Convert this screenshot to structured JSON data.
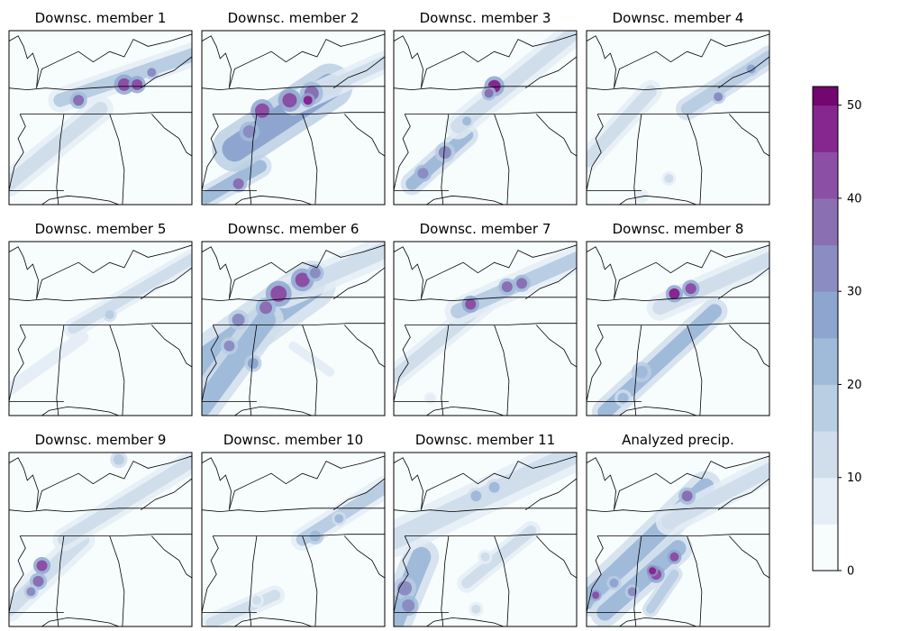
{
  "chart_data": {
    "type": "heatmap",
    "panels": [
      {
        "title": "Downsc. member 1",
        "bands": [
          {
            "x1": 0.0,
            "y1": 0.88,
            "x2": 0.5,
            "y2": 0.45,
            "w": 16,
            "v": 10
          },
          {
            "x1": 0.28,
            "y1": 0.4,
            "x2": 1.0,
            "y2": 0.14,
            "w": 15,
            "v": 15
          }
        ],
        "blobs": [
          {
            "x": 0.63,
            "y": 0.31,
            "r": 7,
            "v": 42
          },
          {
            "x": 0.7,
            "y": 0.31,
            "r": 6,
            "v": 40
          },
          {
            "x": 0.38,
            "y": 0.4,
            "r": 6,
            "v": 38
          },
          {
            "x": 0.78,
            "y": 0.24,
            "r": 5,
            "v": 30
          }
        ]
      },
      {
        "title": "Downsc. member 2",
        "bands": [
          {
            "x1": 0.02,
            "y1": 0.96,
            "x2": 0.32,
            "y2": 0.78,
            "w": 14,
            "v": 22
          },
          {
            "x1": 0.18,
            "y1": 0.68,
            "x2": 0.7,
            "y2": 0.32,
            "w": 28,
            "v": 26
          },
          {
            "x1": 0.5,
            "y1": 0.42,
            "x2": 1.0,
            "y2": 0.18,
            "w": 14,
            "v": 12
          }
        ],
        "blobs": [
          {
            "x": 0.33,
            "y": 0.46,
            "r": 8,
            "v": 42
          },
          {
            "x": 0.48,
            "y": 0.4,
            "r": 8,
            "v": 40
          },
          {
            "x": 0.6,
            "y": 0.36,
            "r": 8,
            "v": 38
          },
          {
            "x": 0.26,
            "y": 0.58,
            "r": 7,
            "v": 32
          },
          {
            "x": 0.2,
            "y": 0.88,
            "r": 6,
            "v": 36
          },
          {
            "x": 0.58,
            "y": 0.4,
            "r": 5,
            "v": 46
          }
        ]
      },
      {
        "title": "Downsc. member 3",
        "bands": [
          {
            "x1": 0.1,
            "y1": 0.88,
            "x2": 0.4,
            "y2": 0.6,
            "w": 14,
            "v": 22
          },
          {
            "x1": 0.35,
            "y1": 0.55,
            "x2": 1.0,
            "y2": 0.0,
            "w": 16,
            "v": 14
          }
        ],
        "blobs": [
          {
            "x": 0.55,
            "y": 0.32,
            "r": 7,
            "v": 46
          },
          {
            "x": 0.52,
            "y": 0.36,
            "r": 5,
            "v": 38
          },
          {
            "x": 0.28,
            "y": 0.7,
            "r": 7,
            "v": 30
          },
          {
            "x": 0.16,
            "y": 0.82,
            "r": 6,
            "v": 32
          },
          {
            "x": 0.4,
            "y": 0.52,
            "r": 5,
            "v": 22
          }
        ]
      },
      {
        "title": "Downsc. member 4",
        "bands": [
          {
            "x1": 0.0,
            "y1": 0.75,
            "x2": 0.35,
            "y2": 0.35,
            "w": 14,
            "v": 10
          },
          {
            "x1": 0.55,
            "y1": 0.45,
            "x2": 1.0,
            "y2": 0.15,
            "w": 14,
            "v": 18
          }
        ],
        "blobs": [
          {
            "x": 0.72,
            "y": 0.38,
            "r": 5,
            "v": 30
          },
          {
            "x": 0.9,
            "y": 0.22,
            "r": 5,
            "v": 25
          },
          {
            "x": 0.45,
            "y": 0.85,
            "r": 5,
            "v": 10
          },
          {
            "x": 0.3,
            "y": 0.95,
            "r": 5,
            "v": 8
          }
        ]
      },
      {
        "title": "Downsc. member 5",
        "bands": [
          {
            "x1": 0.0,
            "y1": 0.85,
            "x2": 0.4,
            "y2": 0.55,
            "w": 14,
            "v": 6
          },
          {
            "x1": 0.35,
            "y1": 0.5,
            "x2": 1.0,
            "y2": 0.1,
            "w": 12,
            "v": 10
          }
        ],
        "blobs": [
          {
            "x": 0.55,
            "y": 0.42,
            "r": 5,
            "v": 16
          }
        ]
      },
      {
        "title": "Downsc. member 6",
        "bands": [
          {
            "x1": 0.0,
            "y1": 0.7,
            "x2": 0.6,
            "y2": 0.25,
            "w": 30,
            "v": 24
          },
          {
            "x1": 0.0,
            "y1": 0.95,
            "x2": 0.35,
            "y2": 0.45,
            "w": 22,
            "v": 22
          },
          {
            "x1": 0.45,
            "y1": 0.3,
            "x2": 1.0,
            "y2": 0.05,
            "w": 18,
            "v": 14
          },
          {
            "x1": 0.5,
            "y1": 0.6,
            "x2": 0.7,
            "y2": 0.75,
            "w": 10,
            "v": 8
          }
        ],
        "blobs": [
          {
            "x": 0.42,
            "y": 0.3,
            "r": 9,
            "v": 42
          },
          {
            "x": 0.55,
            "y": 0.22,
            "r": 8,
            "v": 40
          },
          {
            "x": 0.35,
            "y": 0.38,
            "r": 7,
            "v": 38
          },
          {
            "x": 0.62,
            "y": 0.18,
            "r": 6,
            "v": 34
          },
          {
            "x": 0.2,
            "y": 0.45,
            "r": 7,
            "v": 30
          },
          {
            "x": 0.15,
            "y": 0.6,
            "r": 6,
            "v": 30
          },
          {
            "x": 0.28,
            "y": 0.7,
            "r": 6,
            "v": 28
          }
        ]
      },
      {
        "title": "Downsc. member 7",
        "bands": [
          {
            "x1": 0.0,
            "y1": 0.78,
            "x2": 0.5,
            "y2": 0.35,
            "w": 14,
            "v": 10
          },
          {
            "x1": 0.35,
            "y1": 0.4,
            "x2": 1.0,
            "y2": 0.1,
            "w": 16,
            "v": 16
          }
        ],
        "blobs": [
          {
            "x": 0.42,
            "y": 0.36,
            "r": 6,
            "v": 42
          },
          {
            "x": 0.62,
            "y": 0.26,
            "r": 6,
            "v": 36
          },
          {
            "x": 0.7,
            "y": 0.24,
            "r": 6,
            "v": 36
          },
          {
            "x": 0.2,
            "y": 0.9,
            "r": 4,
            "v": 8
          }
        ]
      },
      {
        "title": "Downsc. member 8",
        "bands": [
          {
            "x1": 0.1,
            "y1": 0.98,
            "x2": 0.7,
            "y2": 0.4,
            "w": 16,
            "v": 20
          },
          {
            "x1": 0.4,
            "y1": 0.38,
            "x2": 1.0,
            "y2": 0.1,
            "w": 16,
            "v": 14
          }
        ],
        "blobs": [
          {
            "x": 0.48,
            "y": 0.3,
            "r": 6,
            "v": 46
          },
          {
            "x": 0.57,
            "y": 0.27,
            "r": 6,
            "v": 40
          },
          {
            "x": 0.3,
            "y": 0.75,
            "r": 7,
            "v": 24
          },
          {
            "x": 0.2,
            "y": 0.9,
            "r": 6,
            "v": 22
          }
        ]
      },
      {
        "title": "Downsc. member 9",
        "bands": [
          {
            "x1": 0.0,
            "y1": 0.9,
            "x2": 0.4,
            "y2": 0.5,
            "w": 16,
            "v": 14
          },
          {
            "x1": 0.3,
            "y1": 0.5,
            "x2": 1.0,
            "y2": 0.05,
            "w": 14,
            "v": 10
          }
        ],
        "blobs": [
          {
            "x": 0.18,
            "y": 0.65,
            "r": 6,
            "v": 40
          },
          {
            "x": 0.16,
            "y": 0.74,
            "r": 6,
            "v": 36
          },
          {
            "x": 0.12,
            "y": 0.8,
            "r": 5,
            "v": 30
          },
          {
            "x": 0.6,
            "y": 0.04,
            "r": 6,
            "v": 16
          }
        ]
      },
      {
        "title": "Downsc. member 10",
        "bands": [
          {
            "x1": 0.05,
            "y1": 0.98,
            "x2": 0.4,
            "y2": 0.82,
            "w": 12,
            "v": 12
          },
          {
            "x1": 0.55,
            "y1": 0.5,
            "x2": 1.0,
            "y2": 0.2,
            "w": 14,
            "v": 16
          }
        ],
        "blobs": [
          {
            "x": 0.62,
            "y": 0.48,
            "r": 6,
            "v": 24
          },
          {
            "x": 0.75,
            "y": 0.38,
            "r": 5,
            "v": 20
          },
          {
            "x": 0.3,
            "y": 0.85,
            "r": 5,
            "v": 14
          }
        ]
      },
      {
        "title": "Downsc. member 11",
        "bands": [
          {
            "x1": 0.0,
            "y1": 0.98,
            "x2": 0.15,
            "y2": 0.6,
            "w": 22,
            "v": 22
          },
          {
            "x1": 0.0,
            "y1": 0.5,
            "x2": 1.0,
            "y2": 0.0,
            "w": 22,
            "v": 14
          },
          {
            "x1": 0.4,
            "y1": 0.75,
            "x2": 0.75,
            "y2": 0.45,
            "w": 12,
            "v": 10
          }
        ],
        "blobs": [
          {
            "x": 0.06,
            "y": 0.78,
            "r": 8,
            "v": 30
          },
          {
            "x": 0.08,
            "y": 0.88,
            "r": 7,
            "v": 32
          },
          {
            "x": 0.45,
            "y": 0.25,
            "r": 6,
            "v": 22
          },
          {
            "x": 0.55,
            "y": 0.2,
            "r": 6,
            "v": 20
          },
          {
            "x": 0.5,
            "y": 0.6,
            "r": 5,
            "v": 14
          },
          {
            "x": 0.45,
            "y": 0.9,
            "r": 5,
            "v": 14
          }
        ]
      },
      {
        "title": "Analyzed precip.",
        "bands": [
          {
            "x1": 0.0,
            "y1": 0.85,
            "x2": 0.65,
            "y2": 0.2,
            "w": 20,
            "v": 22
          },
          {
            "x1": 0.1,
            "y1": 0.92,
            "x2": 0.5,
            "y2": 0.55,
            "w": 18,
            "v": 20
          },
          {
            "x1": 0.35,
            "y1": 0.9,
            "x2": 0.48,
            "y2": 0.7,
            "w": 10,
            "v": 18
          },
          {
            "x1": 0.45,
            "y1": 0.4,
            "x2": 1.0,
            "y2": 0.1,
            "w": 16,
            "v": 14
          }
        ],
        "blobs": [
          {
            "x": 0.38,
            "y": 0.7,
            "r": 6,
            "v": 40
          },
          {
            "x": 0.36,
            "y": 0.68,
            "r": 4,
            "v": 48
          },
          {
            "x": 0.48,
            "y": 0.6,
            "r": 5,
            "v": 40
          },
          {
            "x": 0.55,
            "y": 0.25,
            "r": 6,
            "v": 38
          },
          {
            "x": 0.25,
            "y": 0.8,
            "r": 5,
            "v": 30
          },
          {
            "x": 0.05,
            "y": 0.82,
            "r": 4,
            "v": 42
          },
          {
            "x": 0.15,
            "y": 0.75,
            "r": 5,
            "v": 28
          }
        ]
      }
    ],
    "colorbar": {
      "bounds": [
        0,
        5,
        10,
        15,
        20,
        25,
        30,
        35,
        40,
        45,
        50,
        52
      ],
      "colors": [
        "#f7fcfd",
        "#e5eef6",
        "#d0deec",
        "#b9cde3",
        "#a0bbda",
        "#8ea6cf",
        "#8b8dc2",
        "#8a6fb3",
        "#8b4fa6",
        "#85278f",
        "#71076f",
        "#4d004b"
      ],
      "ticks": [
        "0",
        "10",
        "20",
        "30",
        "40",
        "50"
      ],
      "tick_values": [
        0,
        10,
        20,
        30,
        40,
        50
      ],
      "range": [
        0,
        52
      ]
    }
  }
}
